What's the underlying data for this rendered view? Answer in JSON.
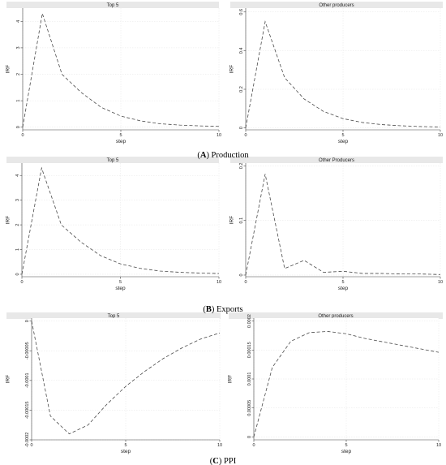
{
  "captions": [
    {
      "letter": "A",
      "text": "Production"
    },
    {
      "letter": "B",
      "text": "Exports"
    },
    {
      "letter": "C",
      "text": "PPI"
    }
  ],
  "chart_data": [
    {
      "type": "line",
      "title": "Top 5",
      "xlabel": "step",
      "ylabel": "IRF",
      "x": [
        0,
        1,
        2,
        3,
        4,
        5,
        6,
        7,
        8,
        9,
        10
      ],
      "series": [
        {
          "values": [
            0,
            4.3,
            2.0,
            1.3,
            0.75,
            0.42,
            0.24,
            0.13,
            0.08,
            0.05,
            0.03
          ]
        }
      ],
      "xlim": [
        0,
        10
      ],
      "ylim": [
        -0.1,
        4.5
      ],
      "xticks": [
        0,
        5,
        10
      ],
      "yticks": [
        0,
        1,
        2,
        3,
        4
      ],
      "yticklabels": [
        "0",
        "1",
        "2",
        "3",
        "4"
      ],
      "grid": true
    },
    {
      "type": "line",
      "title": "Other producers",
      "xlabel": "step",
      "ylabel": "IRF",
      "x": [
        0,
        1,
        2,
        3,
        4,
        5,
        6,
        7,
        8,
        9,
        10
      ],
      "series": [
        {
          "values": [
            0,
            0.55,
            0.26,
            0.15,
            0.085,
            0.048,
            0.028,
            0.017,
            0.011,
            0.007,
            0.005
          ]
        }
      ],
      "xlim": [
        0,
        10
      ],
      "ylim": [
        -0.01,
        0.62
      ],
      "xticks": [
        0,
        5,
        10
      ],
      "yticks": [
        0,
        0.2,
        0.4,
        0.6
      ],
      "yticklabels": [
        "0",
        "0.2",
        "0.4",
        "0.6"
      ],
      "grid": true
    },
    {
      "type": "line",
      "title": "Top 5",
      "xlabel": "step",
      "ylabel": "IRF",
      "x": [
        0,
        1,
        2,
        3,
        4,
        5,
        6,
        7,
        8,
        9,
        10
      ],
      "series": [
        {
          "values": [
            0,
            4.3,
            2.0,
            1.3,
            0.75,
            0.42,
            0.24,
            0.13,
            0.08,
            0.05,
            0.03
          ]
        }
      ],
      "xlim": [
        0,
        10
      ],
      "ylim": [
        -0.1,
        4.5
      ],
      "xticks": [
        0,
        5,
        10
      ],
      "yticks": [
        0,
        1,
        2,
        3,
        4
      ],
      "yticklabels": [
        "0",
        "1",
        "2",
        "3",
        "4"
      ],
      "grid": true
    },
    {
      "type": "line",
      "title": "Other Producers",
      "xlabel": "step",
      "ylabel": "IRF",
      "x": [
        0,
        1,
        2,
        3,
        4,
        5,
        6,
        7,
        8,
        9,
        10
      ],
      "series": [
        {
          "values": [
            0,
            0.185,
            0.012,
            0.027,
            0.005,
            0.007,
            0.003,
            0.003,
            0.002,
            0.002,
            0.001
          ]
        }
      ],
      "xlim": [
        0,
        10
      ],
      "ylim": [
        -0.003,
        0.205
      ],
      "xticks": [
        0,
        5,
        10
      ],
      "yticks": [
        0,
        0.1,
        0.2
      ],
      "yticklabels": [
        "0",
        "0.1",
        "0.2"
      ],
      "grid": true
    },
    {
      "type": "line",
      "title": "Top 5",
      "xlabel": "step",
      "ylabel": "IRF",
      "x": [
        0,
        1,
        2,
        3,
        4,
        5,
        6,
        7,
        8,
        9,
        10
      ],
      "series": [
        {
          "values": [
            0,
            -0.00016,
            -0.00019,
            -0.000175,
            -0.00014,
            -0.00011,
            -8.5e-05,
            -6.3e-05,
            -4.5e-05,
            -3e-05,
            -2e-05
          ]
        }
      ],
      "xlim": [
        0,
        10
      ],
      "ylim": [
        -0.0002,
        5e-06
      ],
      "xticks": [
        0,
        5,
        10
      ],
      "yticks": [
        0,
        -5e-05,
        -0.0001,
        -0.00015,
        -0.0002
      ],
      "yticklabels": [
        "0",
        "-0.00005",
        "-0.0001",
        "-0.00015",
        "-0.0002"
      ],
      "grid": true
    },
    {
      "type": "line",
      "title": "Other producers",
      "xlabel": "step",
      "ylabel": "IRF",
      "x": [
        0,
        1,
        2,
        3,
        4,
        5,
        6,
        7,
        8,
        9,
        10
      ],
      "series": [
        {
          "values": [
            0,
            0.00012,
            0.000165,
            0.00018,
            0.000182,
            0.000178,
            0.00017,
            0.000164,
            0.000158,
            0.000152,
            0.000146
          ]
        }
      ],
      "xlim": [
        0,
        10
      ],
      "ylim": [
        -5e-06,
        0.000205
      ],
      "xticks": [
        0,
        5,
        10
      ],
      "yticks": [
        0,
        5e-05,
        0.0001,
        0.00015,
        0.0002
      ],
      "yticklabels": [
        "0",
        "0.00005",
        "0.0001",
        "0.00015",
        "0.0002"
      ],
      "grid": true
    }
  ]
}
